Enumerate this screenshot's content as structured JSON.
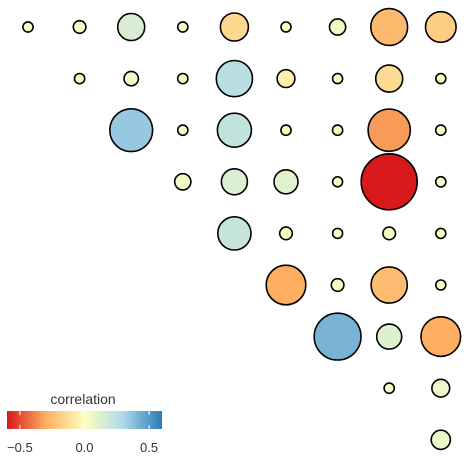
{
  "chart_data": {
    "type": "heatmap",
    "subtype": "correlation-bubble-upper-triangle",
    "title": "",
    "xlabel": "",
    "ylabel": "",
    "grid": false,
    "legend": {
      "title": "correlation",
      "placement": "bottom-left",
      "range": [
        -0.6,
        0.6
      ],
      "ticks": [
        -0.5,
        0.0,
        0.5
      ],
      "tick_labels": [
        "−0.5",
        "0.0",
        "0.5"
      ],
      "colors": [
        "#d7191c",
        "#fdae61",
        "#ffffbf",
        "#abd9e9",
        "#2c7bb6"
      ]
    },
    "n_rows": 9,
    "n_cols": 9,
    "cells": [
      {
        "row": 0,
        "col": 0,
        "value": 0.02
      },
      {
        "row": 0,
        "col": 1,
        "value": 0.03
      },
      {
        "row": 0,
        "col": 2,
        "value": 0.14
      },
      {
        "row": 0,
        "col": 3,
        "value": 0.02
      },
      {
        "row": 0,
        "col": 4,
        "value": -0.15
      },
      {
        "row": 0,
        "col": 5,
        "value": 0.01
      },
      {
        "row": 0,
        "col": 6,
        "value": 0.05
      },
      {
        "row": 0,
        "col": 7,
        "value": -0.26
      },
      {
        "row": 0,
        "col": 8,
        "value": -0.18
      },
      {
        "row": 1,
        "col": 1,
        "value": 0.02
      },
      {
        "row": 1,
        "col": 2,
        "value": 0.04
      },
      {
        "row": 1,
        "col": 3,
        "value": 0.02
      },
      {
        "row": 1,
        "col": 4,
        "value": 0.25
      },
      {
        "row": 1,
        "col": 5,
        "value": -0.06
      },
      {
        "row": 1,
        "col": 6,
        "value": 0.01
      },
      {
        "row": 1,
        "col": 7,
        "value": -0.14
      },
      {
        "row": 1,
        "col": 8,
        "value": 0.01
      },
      {
        "row": 2,
        "col": 2,
        "value": 0.35
      },
      {
        "row": 2,
        "col": 3,
        "value": 0.02
      },
      {
        "row": 2,
        "col": 4,
        "value": 0.22
      },
      {
        "row": 2,
        "col": 5,
        "value": 0.02
      },
      {
        "row": 2,
        "col": 6,
        "value": 0.02
      },
      {
        "row": 2,
        "col": 7,
        "value": -0.34
      },
      {
        "row": 2,
        "col": 8,
        "value": 0.02
      },
      {
        "row": 3,
        "col": 3,
        "value": 0.05
      },
      {
        "row": 3,
        "col": 4,
        "value": 0.13
      },
      {
        "row": 3,
        "col": 5,
        "value": 0.11
      },
      {
        "row": 3,
        "col": 6,
        "value": 0.01
      },
      {
        "row": 3,
        "col": 7,
        "value": -0.6
      },
      {
        "row": 3,
        "col": 8,
        "value": 0.02
      },
      {
        "row": 4,
        "col": 4,
        "value": 0.21
      },
      {
        "row": 4,
        "col": 5,
        "value": 0.03
      },
      {
        "row": 4,
        "col": 6,
        "value": 0.01
      },
      {
        "row": 4,
        "col": 7,
        "value": 0.03
      },
      {
        "row": 4,
        "col": 8,
        "value": 0.01
      },
      {
        "row": 5,
        "col": 5,
        "value": -0.3
      },
      {
        "row": 5,
        "col": 6,
        "value": 0.03
      },
      {
        "row": 5,
        "col": 7,
        "value": -0.25
      },
      {
        "row": 5,
        "col": 8,
        "value": 0.01
      },
      {
        "row": 6,
        "col": 6,
        "value": 0.42
      },
      {
        "row": 6,
        "col": 7,
        "value": 0.12
      },
      {
        "row": 6,
        "col": 8,
        "value": -0.3
      },
      {
        "row": 7,
        "col": 7,
        "value": 0.02
      },
      {
        "row": 7,
        "col": 8,
        "value": 0.06
      },
      {
        "row": 8,
        "col": 8,
        "value": 0.07
      }
    ]
  }
}
